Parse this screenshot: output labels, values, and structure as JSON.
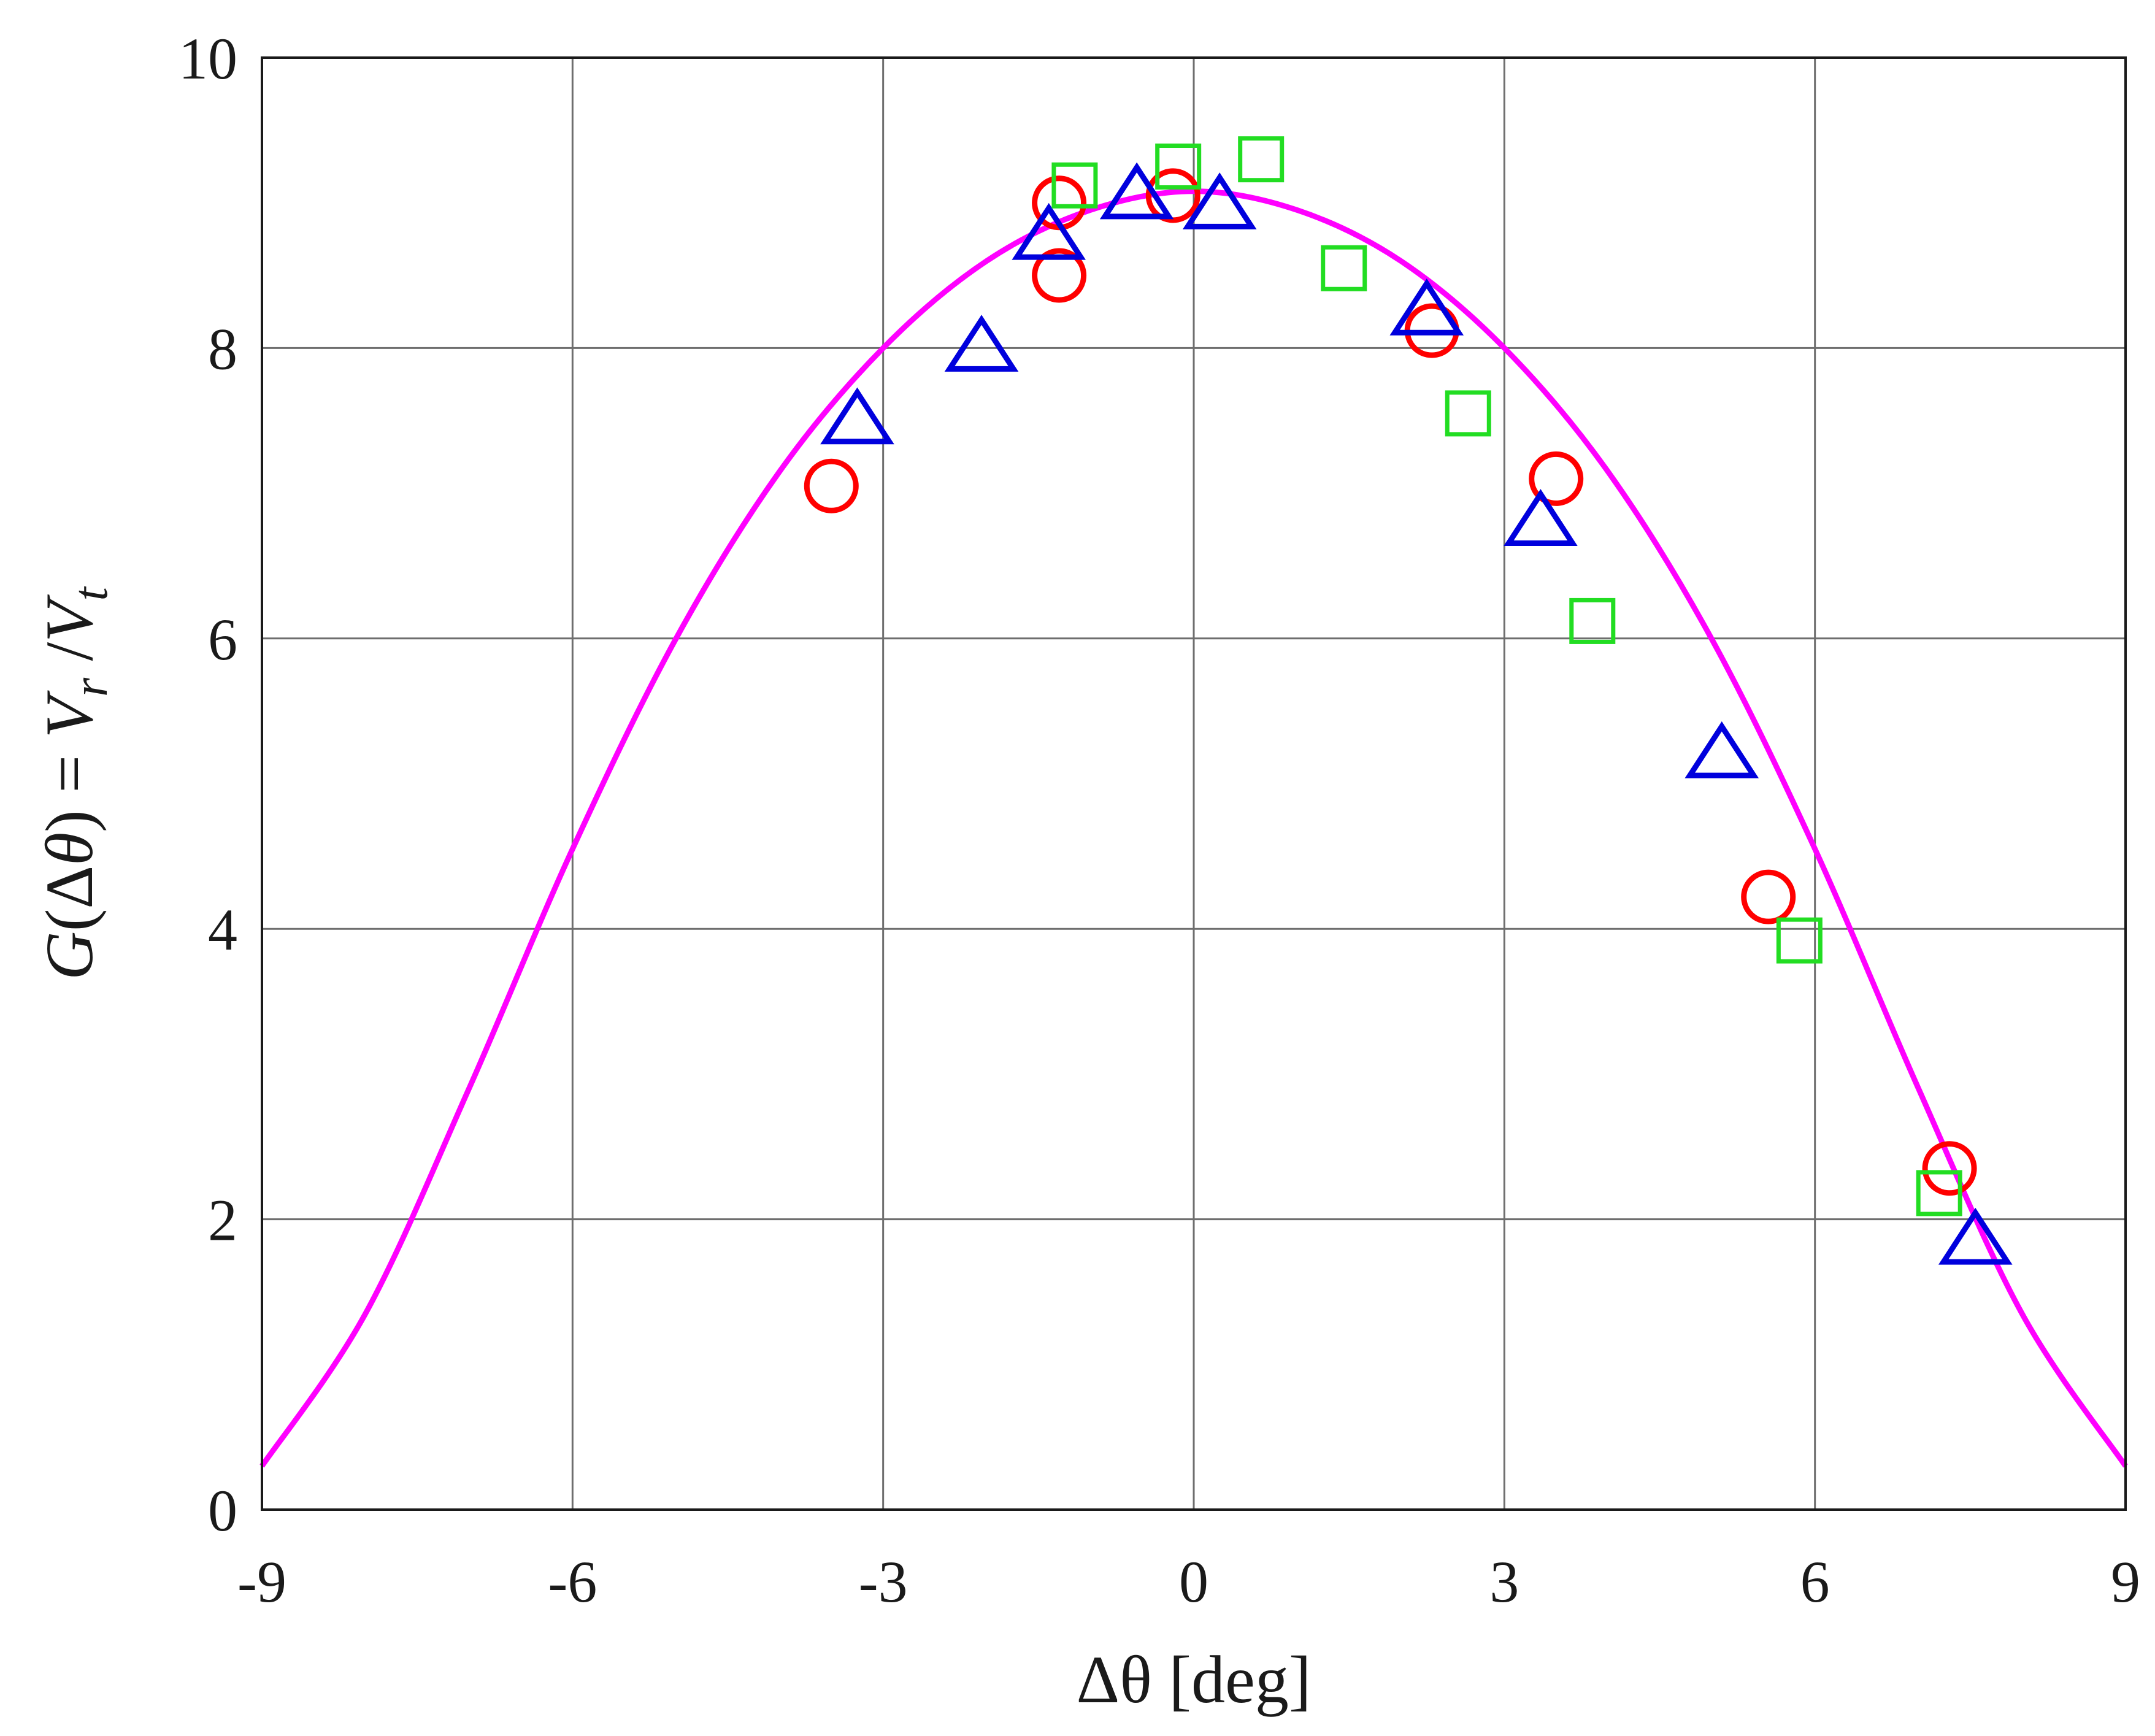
{
  "chart_data": {
    "type": "scatter",
    "title": "",
    "xlabel": "Δθ [deg]",
    "ylabel": "G(Δθ) = Vr/Vt",
    "xlim": [
      -9,
      9
    ],
    "ylim": [
      0,
      10
    ],
    "x_ticks": [
      -9,
      -6,
      -3,
      0,
      3,
      6,
      9
    ],
    "x_tick_labels": [
      "-9",
      "-6",
      "-3",
      "0",
      "3",
      "6",
      "9"
    ],
    "y_ticks": [
      0,
      2,
      4,
      6,
      8,
      10
    ],
    "y_tick_labels": [
      "0",
      "2",
      "4",
      "6",
      "8",
      "10"
    ],
    "grid": true,
    "legend": "none",
    "series": [
      {
        "marker": "circle",
        "color": "#ff0000",
        "points": [
          [
            -3.5,
            7.05
          ],
          [
            -1.3,
            9.0
          ],
          [
            -1.3,
            8.5
          ],
          [
            -0.2,
            9.05
          ],
          [
            2.3,
            8.12
          ],
          [
            3.5,
            7.1
          ],
          [
            5.55,
            4.22
          ],
          [
            7.3,
            2.35
          ]
        ]
      },
      {
        "marker": "triangle",
        "color": "#0000dd",
        "points": [
          [
            -3.25,
            7.5
          ],
          [
            -2.05,
            8.0
          ],
          [
            -1.4,
            8.77
          ],
          [
            -0.55,
            9.05
          ],
          [
            0.25,
            8.98
          ],
          [
            2.25,
            8.25
          ],
          [
            3.35,
            6.8
          ],
          [
            5.1,
            5.2
          ],
          [
            7.55,
            1.85
          ]
        ]
      },
      {
        "marker": "square",
        "color": "#22dd22",
        "points": [
          [
            -1.15,
            9.12
          ],
          [
            -0.15,
            9.25
          ],
          [
            0.65,
            9.3
          ],
          [
            1.45,
            8.55
          ],
          [
            2.65,
            7.55
          ],
          [
            3.85,
            6.12
          ],
          [
            5.85,
            3.92
          ],
          [
            7.2,
            2.18
          ]
        ]
      },
      {
        "marker": "line",
        "color": "#ff00ff",
        "points": [
          [
            -9,
            0.3
          ],
          [
            -8,
            1.35
          ],
          [
            -7,
            2.9
          ],
          [
            -6,
            4.55
          ],
          [
            -5,
            6.0
          ],
          [
            -4,
            7.15
          ],
          [
            -3,
            8.0
          ],
          [
            -2,
            8.6
          ],
          [
            -1,
            8.95
          ],
          [
            0,
            9.08
          ],
          [
            1,
            8.95
          ],
          [
            2,
            8.6
          ],
          [
            3,
            8.0
          ],
          [
            4,
            7.15
          ],
          [
            5,
            6.0
          ],
          [
            6,
            4.55
          ],
          [
            7,
            2.9
          ],
          [
            8,
            1.35
          ],
          [
            9,
            0.3
          ]
        ]
      }
    ]
  }
}
